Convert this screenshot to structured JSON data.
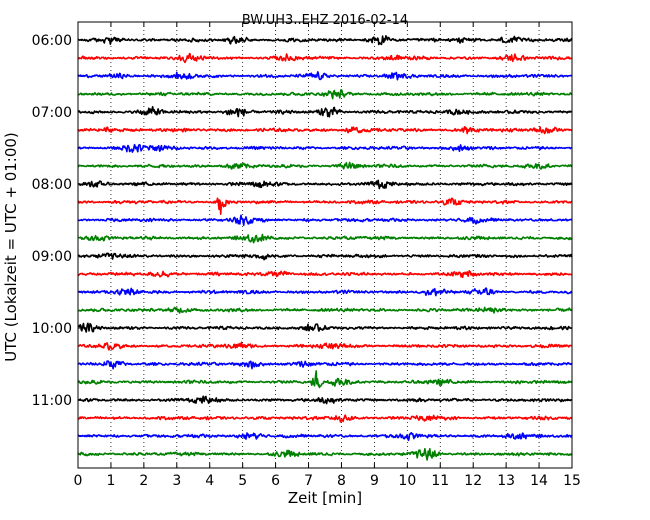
{
  "chart_data": {
    "type": "line",
    "title": "BW.UH3..EHZ 2016-02-14",
    "xlabel": "Zeit  [min]",
    "ylabel": "UTC (Lokalzeit = UTC + 01:00)",
    "xlim": [
      0,
      15
    ],
    "xticks": [
      "0",
      "1",
      "2",
      "3",
      "4",
      "5",
      "6",
      "7",
      "8",
      "9",
      "10",
      "11",
      "12",
      "13",
      "14",
      "15"
    ],
    "yticks": [
      "06:00",
      "07:00",
      "08:00",
      "09:00",
      "10:00",
      "11:00"
    ],
    "row_minutes": 15,
    "first_row": "06:00",
    "grid": "vertical-dotted",
    "colors": [
      "#000000",
      "#ff0000",
      "#0000ff",
      "#008000"
    ],
    "rows": [
      {
        "start": "06:00",
        "color": "#000000",
        "events": [
          {
            "t": 1.0,
            "a": 0.35
          },
          {
            "t": 4.8,
            "a": 0.45
          },
          {
            "t": 9.1,
            "a": 0.6
          },
          {
            "t": 11.7,
            "a": 0.3
          },
          {
            "t": 13.1,
            "a": 0.4
          }
        ]
      },
      {
        "start": "06:15",
        "color": "#ff0000",
        "events": [
          {
            "t": 3.4,
            "a": 0.35
          },
          {
            "t": 6.4,
            "a": 0.3
          },
          {
            "t": 9.6,
            "a": 0.35
          },
          {
            "t": 13.2,
            "a": 0.35
          }
        ]
      },
      {
        "start": "06:30",
        "color": "#0000ff",
        "events": [
          {
            "t": 1.1,
            "a": 0.25
          },
          {
            "t": 3.2,
            "a": 0.3
          },
          {
            "t": 7.3,
            "a": 0.3
          },
          {
            "t": 9.6,
            "a": 0.3
          }
        ]
      },
      {
        "start": "06:45",
        "color": "#008000",
        "events": [
          {
            "t": 7.8,
            "a": 0.5
          }
        ]
      },
      {
        "start": "07:00",
        "color": "#000000",
        "events": [
          {
            "t": 2.2,
            "a": 0.5
          },
          {
            "t": 4.8,
            "a": 0.6
          },
          {
            "t": 7.6,
            "a": 0.6
          },
          {
            "t": 11.5,
            "a": 0.3
          }
        ]
      },
      {
        "start": "07:15",
        "color": "#ff0000",
        "events": [
          {
            "t": 0.9,
            "a": 0.3
          },
          {
            "t": 8.4,
            "a": 0.35
          },
          {
            "t": 11.8,
            "a": 0.35
          },
          {
            "t": 14.2,
            "a": 0.35
          }
        ]
      },
      {
        "start": "07:30",
        "color": "#0000ff",
        "events": [
          {
            "t": 1.7,
            "a": 0.55
          },
          {
            "t": 2.4,
            "a": 0.3
          },
          {
            "t": 11.6,
            "a": 0.3
          }
        ]
      },
      {
        "start": "07:45",
        "color": "#008000",
        "events": [
          {
            "t": 4.8,
            "a": 0.35
          },
          {
            "t": 8.3,
            "a": 0.3
          },
          {
            "t": 14.0,
            "a": 0.3
          }
        ]
      },
      {
        "start": "08:00",
        "color": "#000000",
        "events": [
          {
            "t": 0.5,
            "a": 0.3
          },
          {
            "t": 5.6,
            "a": 0.5
          },
          {
            "t": 9.2,
            "a": 0.35
          }
        ]
      },
      {
        "start": "08:15",
        "color": "#ff0000",
        "events": [
          {
            "t": 4.35,
            "a": 1.6
          },
          {
            "t": 11.3,
            "a": 0.3
          }
        ]
      },
      {
        "start": "08:30",
        "color": "#0000ff",
        "events": [
          {
            "t": 5.0,
            "a": 0.45
          },
          {
            "t": 12.0,
            "a": 0.3
          }
        ]
      },
      {
        "start": "08:45",
        "color": "#008000",
        "events": [
          {
            "t": 0.5,
            "a": 0.3
          },
          {
            "t": 5.4,
            "a": 0.45
          }
        ]
      },
      {
        "start": "09:00",
        "color": "#000000",
        "events": [
          {
            "t": 1.0,
            "a": 0.25
          },
          {
            "t": 5.6,
            "a": 0.3
          }
        ]
      },
      {
        "start": "09:15",
        "color": "#ff0000",
        "events": [
          {
            "t": 2.5,
            "a": 0.3
          },
          {
            "t": 6.1,
            "a": 0.3
          },
          {
            "t": 11.8,
            "a": 0.3
          }
        ]
      },
      {
        "start": "09:30",
        "color": "#0000ff",
        "events": [
          {
            "t": 1.5,
            "a": 0.45
          },
          {
            "t": 10.8,
            "a": 0.4
          },
          {
            "t": 12.3,
            "a": 0.4
          }
        ]
      },
      {
        "start": "09:45",
        "color": "#008000",
        "events": [
          {
            "t": 3.0,
            "a": 0.3
          },
          {
            "t": 12.6,
            "a": 0.35
          }
        ]
      },
      {
        "start": "10:00",
        "color": "#000000",
        "events": [
          {
            "t": 0.2,
            "a": 0.45
          },
          {
            "t": 7.1,
            "a": 0.35
          }
        ]
      },
      {
        "start": "10:15",
        "color": "#ff0000",
        "events": [
          {
            "t": 1.0,
            "a": 0.3
          },
          {
            "t": 4.9,
            "a": 0.35
          },
          {
            "t": 7.7,
            "a": 0.3
          }
        ]
      },
      {
        "start": "10:30",
        "color": "#0000ff",
        "events": [
          {
            "t": 1.1,
            "a": 0.4
          },
          {
            "t": 5.3,
            "a": 0.4
          },
          {
            "t": 7.0,
            "a": 0.35
          }
        ]
      },
      {
        "start": "10:45",
        "color": "#008000",
        "events": [
          {
            "t": 7.25,
            "a": 1.7
          },
          {
            "t": 8.0,
            "a": 0.45
          },
          {
            "t": 11.0,
            "a": 0.3
          }
        ]
      },
      {
        "start": "11:00",
        "color": "#000000",
        "events": [
          {
            "t": 3.8,
            "a": 0.35
          },
          {
            "t": 7.6,
            "a": 0.3
          }
        ]
      },
      {
        "start": "11:15",
        "color": "#ff0000",
        "events": [
          {
            "t": 8.0,
            "a": 0.4
          },
          {
            "t": 10.6,
            "a": 0.3
          }
        ]
      },
      {
        "start": "11:30",
        "color": "#0000ff",
        "events": [
          {
            "t": 5.3,
            "a": 0.5
          },
          {
            "t": 10.0,
            "a": 0.35
          },
          {
            "t": 13.3,
            "a": 0.3
          }
        ]
      },
      {
        "start": "11:45",
        "color": "#008000",
        "events": [
          {
            "t": 10.6,
            "a": 0.65
          },
          {
            "t": 6.4,
            "a": 0.3
          }
        ]
      }
    ]
  }
}
